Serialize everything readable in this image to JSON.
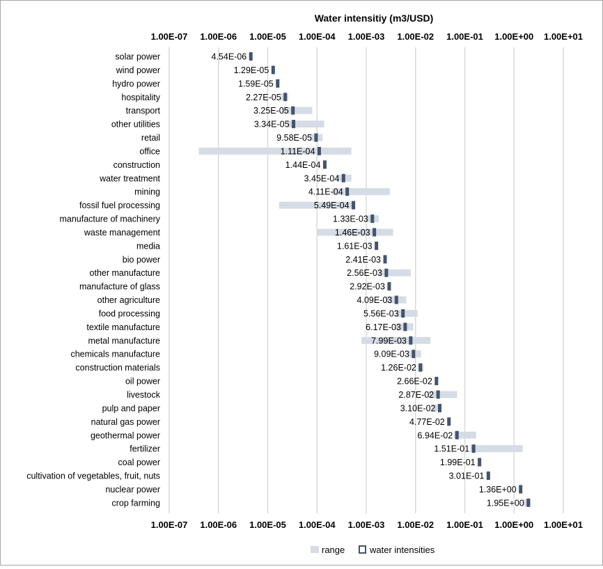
{
  "chart_data": {
    "type": "range-with-point (horizontal, log scale)",
    "title": "Water intensitiy (m3/USD)",
    "x_scale": "log10",
    "xlim": [
      1e-07,
      10
    ],
    "x_ticks": [
      "1.00E-07",
      "1.00E-06",
      "1.00E-05",
      "1.00E-04",
      "1.00E-03",
      "1.00E-02",
      "1.00E-01",
      "1.00E+00",
      "1.00E+01"
    ],
    "grid": "vertical",
    "legend": {
      "position": "bottom-center",
      "items": [
        "range",
        "water intensities"
      ]
    },
    "colors": {
      "range": "#d6dce5",
      "marker": "#44546a",
      "grid": "#d9d9d9",
      "border": "#a6a6a6"
    },
    "categories": [
      {
        "name": "solar power",
        "value": 4.54e-06,
        "label": "4.54E-06",
        "range": null
      },
      {
        "name": "wind power",
        "value": 1.29e-05,
        "label": "1.29E-05",
        "range": null
      },
      {
        "name": "hydro power",
        "value": 1.59e-05,
        "label": "1.59E-05",
        "range": null
      },
      {
        "name": "hospitality",
        "value": 2.27e-05,
        "label": "2.27E-05",
        "range": [
          1.8e-05,
          2.6e-05
        ]
      },
      {
        "name": "transport",
        "value": 3.25e-05,
        "label": "3.25E-05",
        "range": [
          2e-05,
          8e-05
        ]
      },
      {
        "name": "other utilities",
        "value": 3.34e-05,
        "label": "3.34E-05",
        "range": [
          2.5e-05,
          0.00014
        ]
      },
      {
        "name": "retail",
        "value": 9.58e-05,
        "label": "9.58E-05",
        "range": [
          7e-05,
          0.00013
        ]
      },
      {
        "name": "office",
        "value": 0.000111,
        "label": "1.11E-04",
        "range": [
          4e-07,
          0.0005
        ]
      },
      {
        "name": "construction",
        "value": 0.000144,
        "label": "1.44E-04",
        "range": null
      },
      {
        "name": "water treatment",
        "value": 0.000345,
        "label": "3.45E-04",
        "range": [
          0.00025,
          0.0005
        ]
      },
      {
        "name": "mining",
        "value": 0.000411,
        "label": "4.11E-04",
        "range": [
          0.0002,
          0.003
        ]
      },
      {
        "name": "fossil fuel processing",
        "value": 0.000549,
        "label": "5.49E-04",
        "range": [
          1.7e-05,
          0.00058
        ]
      },
      {
        "name": "manufacture of machinery",
        "value": 0.00133,
        "label": "1.33E-03",
        "range": [
          0.001,
          0.0018
        ]
      },
      {
        "name": "waste management",
        "value": 0.00146,
        "label": "1.46E-03",
        "range": [
          0.0001,
          0.0035
        ]
      },
      {
        "name": "media",
        "value": 0.00161,
        "label": "1.61E-03",
        "range": null
      },
      {
        "name": "bio power",
        "value": 0.00241,
        "label": "2.41E-03",
        "range": null
      },
      {
        "name": "other manufacture",
        "value": 0.00256,
        "label": "2.56E-03",
        "range": [
          0.0018,
          0.008
        ]
      },
      {
        "name": "manufacture of glass",
        "value": 0.00292,
        "label": "2.92E-03",
        "range": null
      },
      {
        "name": "other agriculture",
        "value": 0.00409,
        "label": "4.09E-03",
        "range": [
          0.0025,
          0.0065
        ]
      },
      {
        "name": "food processing",
        "value": 0.00556,
        "label": "5.56E-03",
        "range": [
          0.004,
          0.011
        ]
      },
      {
        "name": "textile manufacture",
        "value": 0.00617,
        "label": "6.17E-03",
        "range": [
          0.004,
          0.009
        ]
      },
      {
        "name": "metal manufacture",
        "value": 0.00799,
        "label": "7.99E-03",
        "range": [
          0.0008,
          0.02
        ]
      },
      {
        "name": "chemicals manufacture",
        "value": 0.00909,
        "label": "9.09E-03",
        "range": [
          0.007,
          0.013
        ]
      },
      {
        "name": "construction materials",
        "value": 0.0126,
        "label": "1.26E-02",
        "range": [
          0.011,
          0.0145
        ]
      },
      {
        "name": "oil power",
        "value": 0.0266,
        "label": "2.66E-02",
        "range": null
      },
      {
        "name": "livestock",
        "value": 0.0287,
        "label": "2.87E-02",
        "range": [
          0.018,
          0.07
        ]
      },
      {
        "name": "pulp and paper",
        "value": 0.031,
        "label": "3.10E-02",
        "range": [
          0.022,
          0.033
        ]
      },
      {
        "name": "natural gas power",
        "value": 0.0477,
        "label": "4.77E-02",
        "range": null
      },
      {
        "name": "geothermal power",
        "value": 0.0694,
        "label": "6.94E-02",
        "range": [
          0.06,
          0.17
        ]
      },
      {
        "name": "fertilizer",
        "value": 0.151,
        "label": "1.51E-01",
        "range": [
          0.13,
          1.5
        ]
      },
      {
        "name": "coal power",
        "value": 0.199,
        "label": "1.99E-01",
        "range": null
      },
      {
        "name": "cultivation of vegetables, fruit, nuts",
        "value": 0.301,
        "label": "3.01E-01",
        "range": null
      },
      {
        "name": "nuclear power",
        "value": 1.36,
        "label": "1.36E+00",
        "range": null
      },
      {
        "name": "crop farming",
        "value": 1.95,
        "label": "1.95E+00",
        "range": [
          1.5,
          2.2
        ]
      }
    ]
  }
}
